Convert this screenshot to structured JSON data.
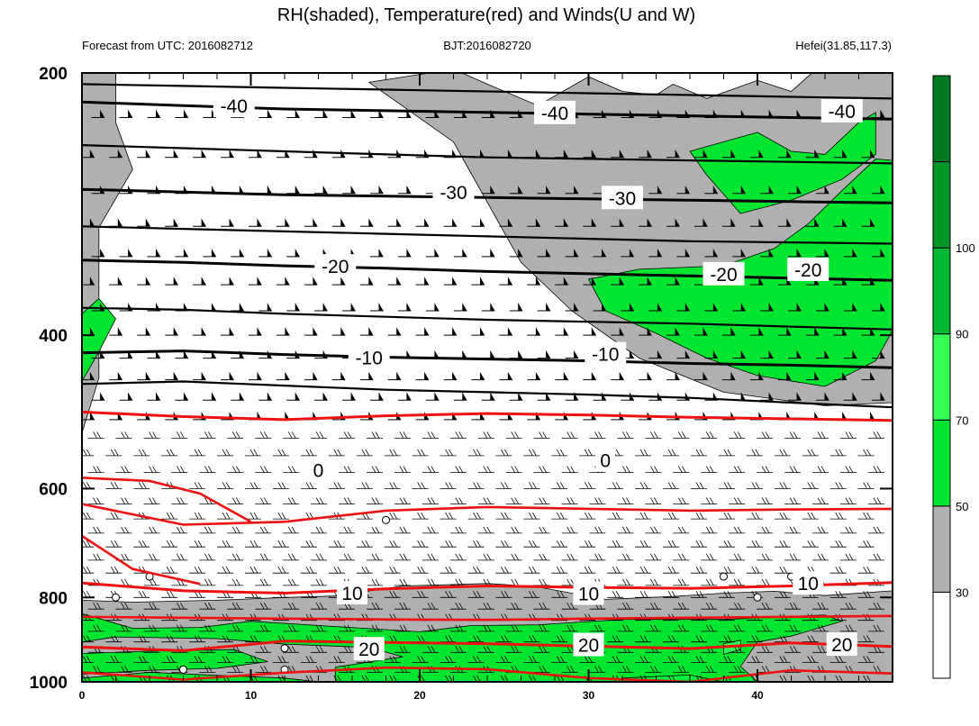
{
  "chart_data": {
    "type": "heatmap",
    "title": "RH(shaded), Temperature(red) and Winds(U and W)",
    "subtitle_left": "Forecast from UTC: 2016082712",
    "subtitle_center": "BJT:2016082720",
    "subtitle_right": "Hefei(31.85,117.3)",
    "xlabel": "",
    "ylabel": "",
    "x_range": [
      0,
      48
    ],
    "y_range": [
      1000,
      200
    ],
    "y_scale": "log-pressure (reversed)",
    "x_ticks": [
      "0",
      "10",
      "20",
      "30",
      "40"
    ],
    "y_ticks": [
      "200",
      "400",
      "600",
      "800",
      "1000"
    ],
    "colorbar": {
      "placement": "right",
      "levels": [
        30,
        50,
        70,
        90,
        100
      ],
      "tick_labels": [
        "30",
        "50",
        "70",
        "90",
        "100"
      ],
      "colors": [
        "#ffffff",
        "#b0b0b0",
        "#00e630",
        "#33ff55",
        "#00b832",
        "#009628",
        "#007a20"
      ]
    },
    "rh_regions": [
      {
        "level": "30-50",
        "color": "#b0b0b0",
        "polygon": [
          [
            0,
            806
          ],
          [
            3,
            810
          ],
          [
            8,
            806
          ],
          [
            12,
            800
          ],
          [
            15,
            797
          ],
          [
            19,
            776
          ],
          [
            24,
            771
          ],
          [
            25,
            773
          ],
          [
            27,
            778
          ],
          [
            31,
            804
          ],
          [
            35,
            798
          ],
          [
            38,
            791
          ],
          [
            41,
            787
          ],
          [
            44,
            796
          ],
          [
            48,
            786
          ],
          [
            48,
            1000
          ],
          [
            0,
            1000
          ]
        ]
      },
      {
        "level": "30-50",
        "color": "#b0b0b0",
        "polygon": [
          [
            0,
            518
          ],
          [
            1,
            448
          ],
          [
            1,
            301
          ],
          [
            3,
            258
          ],
          [
            2,
            228
          ],
          [
            2,
            193
          ],
          [
            0,
            193
          ]
        ]
      },
      {
        "level": "30-50",
        "color": "#b0b0b0",
        "polygon": [
          [
            17,
            205
          ],
          [
            22,
            240
          ],
          [
            26,
            330
          ],
          [
            29,
            375
          ],
          [
            33,
            425
          ],
          [
            38,
            465
          ],
          [
            44,
            482
          ],
          [
            48,
            478
          ],
          [
            48,
            194
          ],
          [
            44,
            194
          ],
          [
            42,
            210
          ],
          [
            40,
            204
          ],
          [
            37,
            214
          ],
          [
            35,
            206
          ],
          [
            34,
            212
          ],
          [
            32,
            210
          ],
          [
            30,
            202
          ],
          [
            27,
            218
          ],
          [
            24,
            206
          ],
          [
            22,
            198
          ]
        ]
      },
      {
        "level": "50-70",
        "color": "#00e630",
        "polygon": [
          [
            0,
            835
          ],
          [
            3,
            868
          ],
          [
            7,
            866
          ],
          [
            10,
            852
          ],
          [
            15,
            864
          ],
          [
            20,
            876
          ],
          [
            23,
            862
          ],
          [
            27,
            860
          ],
          [
            32,
            848
          ],
          [
            38,
            848
          ],
          [
            44,
            838
          ],
          [
            45,
            852
          ],
          [
            42,
            886
          ],
          [
            40,
            900
          ],
          [
            39,
            960
          ],
          [
            40,
            1000
          ],
          [
            15,
            1000
          ],
          [
            15,
            962
          ],
          [
            19,
            936
          ],
          [
            17,
            913
          ],
          [
            12,
            905
          ],
          [
            8,
            892
          ],
          [
            2,
            888
          ],
          [
            0,
            900
          ]
        ]
      },
      {
        "level": "50-70",
        "color": "#00e630",
        "polygon": [
          [
            0,
            928
          ],
          [
            4,
            922
          ],
          [
            9,
            918
          ],
          [
            11,
            948
          ],
          [
            8,
            965
          ],
          [
            4,
            970
          ],
          [
            0,
            980
          ]
        ]
      },
      {
        "level": "50-70",
        "color": "#00e630",
        "polygon": [
          [
            0,
            990
          ],
          [
            4,
            975
          ],
          [
            8,
            983
          ],
          [
            12,
            990
          ],
          [
            14,
            1000
          ],
          [
            0,
            1000
          ]
        ]
      },
      {
        "level": "50-70",
        "color": "#00e630",
        "polygon": [
          [
            0,
            378
          ],
          [
            1,
            363
          ],
          [
            2,
            383
          ],
          [
            1,
            418
          ],
          [
            0,
            452
          ]
        ]
      },
      {
        "level": "50-70",
        "color": "#00e630",
        "polygon": [
          [
            30,
            345
          ],
          [
            33,
            336
          ],
          [
            38,
            333
          ],
          [
            41,
            318
          ],
          [
            43,
            298
          ],
          [
            45,
            273
          ],
          [
            47,
            251
          ],
          [
            48,
            252
          ],
          [
            48,
            395
          ],
          [
            47,
            428
          ],
          [
            44,
            458
          ],
          [
            40,
            445
          ],
          [
            37,
            425
          ],
          [
            34,
            398
          ],
          [
            31,
            375
          ]
        ]
      },
      {
        "level": "50-70",
        "color": "#00e630",
        "polygon": [
          [
            36,
            246
          ],
          [
            40,
            234
          ],
          [
            42,
            246
          ],
          [
            44,
            248
          ],
          [
            46,
            228
          ],
          [
            47,
            222
          ],
          [
            47,
            248
          ],
          [
            45,
            265
          ],
          [
            42,
            280
          ],
          [
            39,
            290
          ],
          [
            37,
            262
          ]
        ]
      },
      {
        "level": "70-90",
        "color": "#33ff55",
        "polygon": [
          [
            38,
            904
          ],
          [
            39,
            896
          ],
          [
            39,
            918
          ],
          [
            38,
            930
          ]
        ]
      },
      {
        "level": "70-90",
        "color": "#00ee40",
        "polygon": [
          [
            32,
            990
          ],
          [
            36,
            982
          ],
          [
            38,
            1000
          ],
          [
            32,
            1000
          ]
        ]
      }
    ],
    "temperature_isotherms": [
      {
        "label": "-40",
        "levels_hPa": [
          216,
          218,
          220,
          221,
          222,
          223,
          224,
          225,
          226
        ]
      },
      {
        "label": "-30",
        "levels_hPa": [
          272,
          274,
          276,
          277,
          278,
          279,
          280,
          281,
          282
        ]
      },
      {
        "label": "-20",
        "levels_hPa": [
          328,
          330,
          333,
          335,
          338,
          340,
          342,
          344,
          346
        ]
      },
      {
        "label": "-10",
        "levels_hPa": [
          419,
          417,
          421,
          424,
          426,
          428,
          431,
          433,
          436
        ]
      },
      {
        "label": "0",
        "levels_hPa": [
          490,
          496,
          500,
          495,
          492,
          494,
          497,
          499,
          501
        ]
      },
      {
        "label": "10",
        "levels_hPa": [
          770,
          786,
          791,
          782,
          776,
          779,
          781,
          776,
          769
        ]
      },
      {
        "label": "20",
        "levels_hPa": [
          912,
          921,
          898,
          901,
          904,
          910,
          916,
          902,
          911
        ]
      }
    ],
    "contour_labels": [
      {
        "text": "-40",
        "x": 9,
        "p": 218
      },
      {
        "text": "-40",
        "x": 28,
        "p": 222
      },
      {
        "text": "-40",
        "x": 45,
        "p": 221
      },
      {
        "text": "-30",
        "x": 22,
        "p": 274
      },
      {
        "text": "-30",
        "x": 32,
        "p": 278
      },
      {
        "text": "-20",
        "x": 15,
        "p": 333
      },
      {
        "text": "-20",
        "x": 38,
        "p": 340
      },
      {
        "text": "-20",
        "x": 43,
        "p": 336
      },
      {
        "text": "-10",
        "x": 17,
        "p": 424
      },
      {
        "text": "-10",
        "x": 31,
        "p": 420
      },
      {
        "text": "0",
        "x": 14,
        "p": 571
      },
      {
        "text": "0",
        "x": 31,
        "p": 556
      },
      {
        "text": "10",
        "x": 16,
        "p": 790
      },
      {
        "text": "10",
        "x": 30,
        "p": 791
      },
      {
        "text": "10",
        "x": 43,
        "p": 770
      },
      {
        "text": "20",
        "x": 17,
        "p": 916
      },
      {
        "text": "20",
        "x": 30,
        "p": 906
      },
      {
        "text": "20",
        "x": 45,
        "p": 905
      }
    ]
  }
}
